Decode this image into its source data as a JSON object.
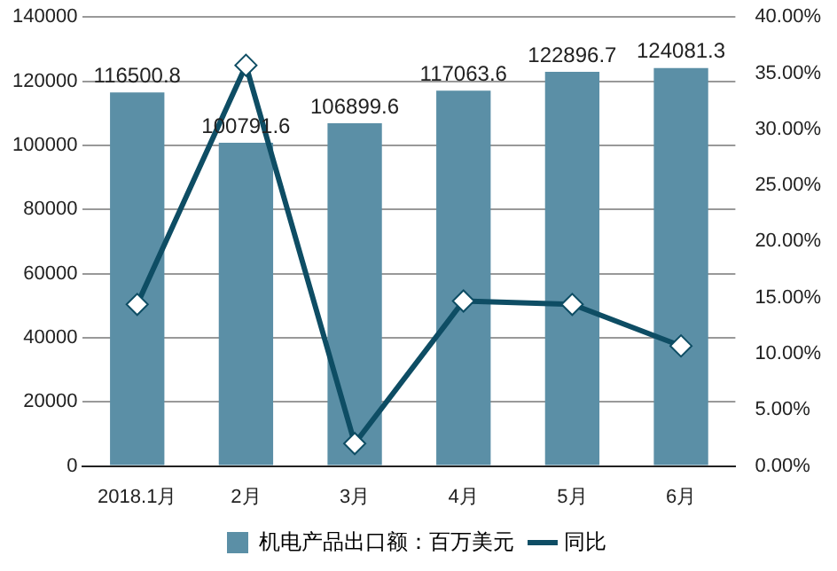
{
  "chart_data": {
    "type": "bar",
    "categories": [
      "2018.1月",
      "2月",
      "3月",
      "4月",
      "5月",
      "6月"
    ],
    "series": [
      {
        "name": "机电产品出口额：百万美元",
        "color": "#5b8fa6",
        "values": [
          116500.8,
          100791.6,
          106899.6,
          117063.6,
          122896.7,
          124081.3
        ],
        "value_labels": [
          "116500.8",
          "100791.6",
          "106899.6",
          "117063.6",
          "122896.7",
          "124081.3"
        ]
      },
      {
        "name": "同比",
        "type": "line",
        "axis": "y2",
        "color": "#0e4d64",
        "marker": "diamond",
        "values": [
          14.4,
          35.7,
          2.0,
          14.7,
          14.4,
          10.7
        ]
      }
    ],
    "ylim": [
      0,
      140000
    ],
    "yticks": [
      0,
      20000,
      40000,
      60000,
      80000,
      100000,
      120000,
      140000
    ],
    "y2lim": [
      0,
      40
    ],
    "y2ticks": [
      {
        "value": 0,
        "label": "0.00%"
      },
      {
        "value": 5,
        "label": "5.00%"
      },
      {
        "value": 10,
        "label": "10.00%"
      },
      {
        "value": 15,
        "label": "15.00%"
      },
      {
        "value": 20,
        "label": "20.00%"
      },
      {
        "value": 25,
        "label": "25.00%"
      },
      {
        "value": 30,
        "label": "30.00%"
      },
      {
        "value": 35,
        "label": "35.00%"
      },
      {
        "value": 40,
        "label": "40.00%"
      }
    ],
    "grid": "y",
    "legend": "bottom"
  }
}
